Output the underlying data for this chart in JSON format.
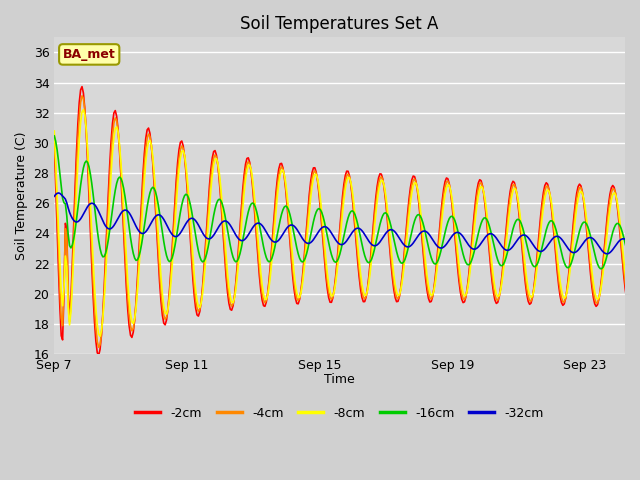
{
  "title": "Soil Temperatures Set A",
  "xlabel": "Time",
  "ylabel": "Soil Temperature (C)",
  "ylim": [
    16,
    37
  ],
  "yticks": [
    16,
    18,
    20,
    22,
    24,
    26,
    28,
    30,
    32,
    34,
    36
  ],
  "fig_bg": "#d8d8d8",
  "plot_bg": "#d8d8d8",
  "series_colors": {
    "-2cm": "#ff0000",
    "-4cm": "#ff8800",
    "-8cm": "#ffff00",
    "-16cm": "#00cc00",
    "-32cm": "#0000cc"
  },
  "annotation_text": "BA_met",
  "xtick_labels": [
    "Sep 7",
    "Sep 11",
    "Sep 15",
    "Sep 19",
    "Sep 23"
  ],
  "xtick_positions": [
    0,
    4,
    8,
    12,
    16
  ],
  "title_fontsize": 12,
  "axis_label_fontsize": 9,
  "tick_fontsize": 9,
  "legend_fontsize": 9
}
